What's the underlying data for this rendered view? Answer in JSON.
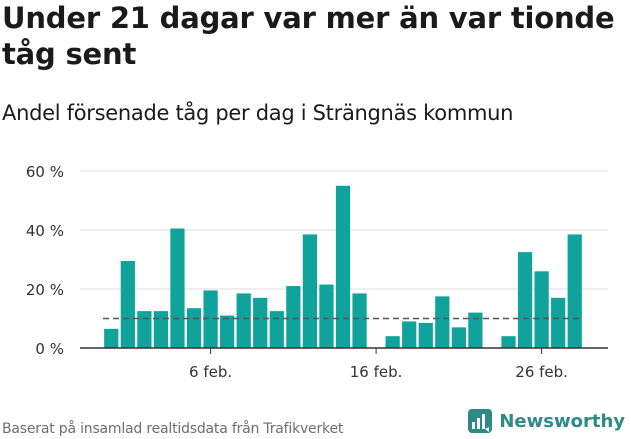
{
  "header": {
    "title": "Under 21 dagar var mer än var tionde tåg sent",
    "subtitle": "Andel försenade tåg per dag i Strängnäs kommun"
  },
  "footer": {
    "source": "Baserat på insamlad realtidsdata från Trafikverket",
    "brand": "Newsworthy",
    "brand_icon": "newsworthy-logo-icon"
  },
  "colors": {
    "bar": "#0fa39b",
    "reference_line": "#555555",
    "grid": "#dddddd",
    "brand": "#2e8a86"
  },
  "chart_data": {
    "type": "bar",
    "unit": "%",
    "categories": [
      "2025-01-31",
      "2025-02-01",
      "2025-02-02",
      "2025-02-03",
      "2025-02-04",
      "2025-02-05",
      "2025-02-06",
      "2025-02-07",
      "2025-02-08",
      "2025-02-09",
      "2025-02-10",
      "2025-02-11",
      "2025-02-12",
      "2025-02-13",
      "2025-02-14",
      "2025-02-15",
      "2025-02-16",
      "2025-02-17",
      "2025-02-18",
      "2025-02-19",
      "2025-02-20",
      "2025-02-21",
      "2025-02-22",
      "2025-02-23",
      "2025-02-24",
      "2025-02-25",
      "2025-02-26",
      "2025-02-27",
      "2025-02-28"
    ],
    "values": [
      6.5,
      29.5,
      12.5,
      12.5,
      40.5,
      13.5,
      19.5,
      11,
      18.5,
      17,
      12.5,
      21,
      38.5,
      21.5,
      55,
      18.5,
      0,
      4,
      9,
      8.5,
      17.5,
      7,
      12,
      0,
      4,
      32.5,
      26,
      17,
      38.5
    ],
    "reference_line": 10,
    "ylim": [
      0,
      60
    ],
    "yticks": [
      0,
      20,
      40,
      60
    ],
    "ytick_labels": [
      "0 %",
      "20 %",
      "40 %",
      "60 %"
    ],
    "xticks": [
      {
        "category": "2025-02-06",
        "label": "6 feb."
      },
      {
        "category": "2025-02-16",
        "label": "16 feb."
      },
      {
        "category": "2025-02-26",
        "label": "26 feb."
      }
    ],
    "grid": true,
    "xlabel": "",
    "ylabel": ""
  }
}
